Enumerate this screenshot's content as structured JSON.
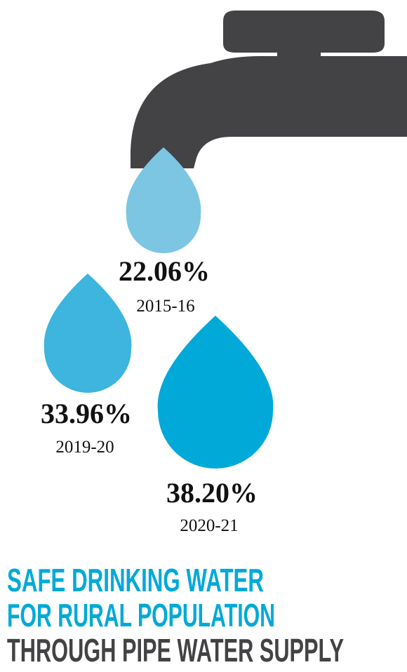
{
  "items": [
    {
      "value": "22.06%",
      "period": "2015-16"
    },
    {
      "value": "33.96%",
      "period": "2019-20"
    },
    {
      "value": "38.20%",
      "period": "2020-21"
    }
  ],
  "title_lines": [
    "SAFE DRINKING WATER",
    "FOR RURAL POPULATION",
    "THROUGH PIPE WATER SUPPLY"
  ]
}
